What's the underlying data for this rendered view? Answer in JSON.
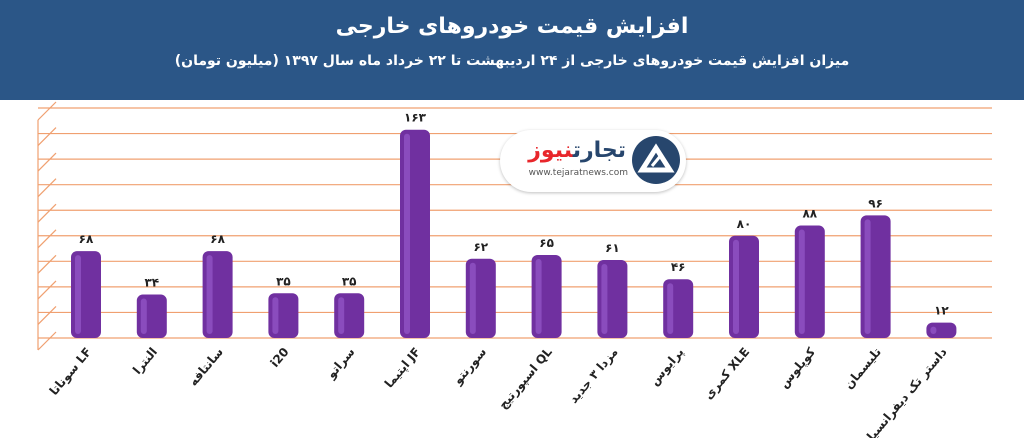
{
  "header": {
    "title": "افزایش قیمت خودروهای خارجی",
    "subtitle": "میزان افزایش قیمت خودروهای خارجی از ۲۴ اردیبهشت تا ۲۲ خرداد ماه سال ۱۳۹۷ (میلیون تومان)"
  },
  "logo": {
    "text_red": "نیوز",
    "text_blue": "تجارت",
    "url": "www.tejaratnews.com"
  },
  "colors": {
    "header_bg": "#2b5687",
    "bar_fill": "#7030a0",
    "gridline": "#f0a070"
  },
  "chart_data": {
    "type": "bar",
    "title": "افزایش قیمت خودروهای خارجی",
    "subtitle": "میزان افزایش قیمت خودروهای خارجی از ۲۴ اردیبهشت تا ۲۲ خرداد ماه سال ۱۳۹۷ (میلیون تومان)",
    "categories": [
      "سوناتا LF",
      "النترا",
      "سانتافه",
      "i20",
      "سراتو",
      "اپتیما JF",
      "سورنتو",
      "اسپورتیج QL",
      "مزدا ۳ جدید",
      "پرایوس",
      "کمری XLE",
      "کوپلوس",
      "تلیسمان",
      "داستر تک دیفرانسیل"
    ],
    "values": [
      68,
      34,
      68,
      35,
      35,
      163,
      62,
      65,
      61,
      46,
      80,
      88,
      96,
      12
    ],
    "value_labels": [
      "۶۸",
      "۳۴",
      "۶۸",
      "۳۵",
      "۳۵",
      "۱۶۳",
      "۶۲",
      "۶۵",
      "۶۱",
      "۴۶",
      "۸۰",
      "۸۸",
      "۹۶",
      "۱۲"
    ],
    "ylim": [
      0,
      180
    ],
    "grid": true,
    "legend": "none"
  }
}
